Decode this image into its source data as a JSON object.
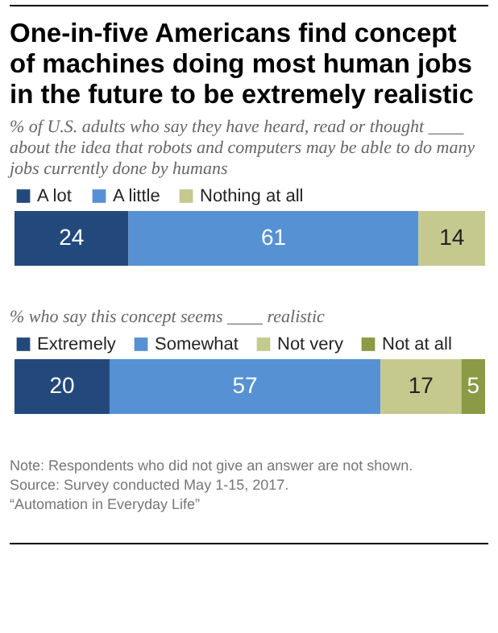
{
  "chart_data": [
    {
      "type": "bar",
      "orientation": "horizontal",
      "stacked": true,
      "data_labels": true,
      "legend": "top",
      "title": "One-in-five Americans find concept of machines doing most human jobs in the future to be extremely realistic",
      "subtitle": "% of U.S. adults who say they have heard, read or thought ____ about the idea that robots and computers may be able to do many jobs currently done by humans",
      "categories": [
        null
      ],
      "series": [
        {
          "name": "A lot",
          "color": "#23497c",
          "values": [
            24
          ]
        },
        {
          "name": "A little",
          "color": "#5691d4",
          "values": [
            61
          ]
        },
        {
          "name": "Nothing at all",
          "color": "#c5c98e",
          "values": [
            14
          ]
        }
      ]
    },
    {
      "type": "bar",
      "orientation": "horizontal",
      "stacked": true,
      "data_labels": true,
      "legend": "top",
      "subtitle": "% who say this concept seems ____ realistic",
      "categories": [
        null
      ],
      "series": [
        {
          "name": "Extremely",
          "color": "#23497c",
          "values": [
            20
          ]
        },
        {
          "name": "Somewhat",
          "color": "#5691d4",
          "values": [
            57
          ]
        },
        {
          "name": "Not very",
          "color": "#c5c98e",
          "values": [
            17
          ]
        },
        {
          "name": "Not at all",
          "color": "#8a9a45",
          "values": [
            5
          ]
        }
      ],
      "annotations": [
        "Note: Respondents who did not give an answer are not shown.",
        "Source: Survey conducted May 1-15, 2017.",
        "“Automation in Everyday Life”"
      ]
    }
  ]
}
